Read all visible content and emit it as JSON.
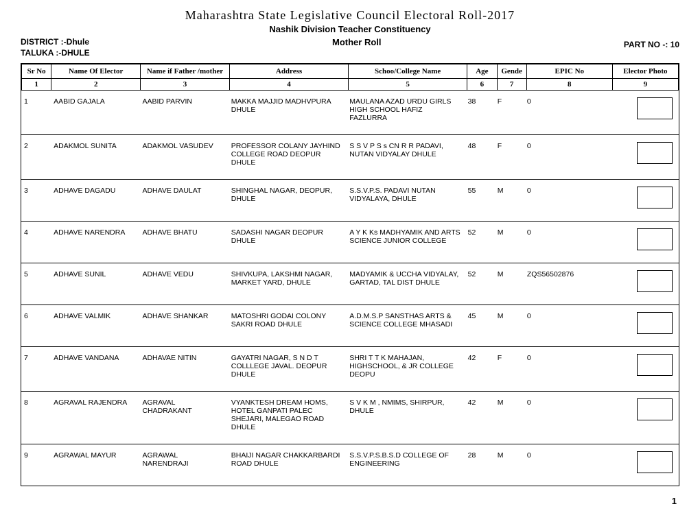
{
  "title": "Maharashtra State Legislative Council Electoral Roll-2017",
  "constituency": "Nashik Division Teacher Constituency",
  "roll_label": "Mother Roll",
  "district_label": "DISTRICT :-Dhule",
  "taluka_label": "TALUKA :-DHULE",
  "part_label": "PART NO -: 10",
  "page_number": "1",
  "columns": {
    "h1": "Sr No",
    "h2": "Name Of Elector",
    "h3": "Name if Father /mother",
    "h4": "Address",
    "h5": "Schoo/College Name",
    "h6": "Age",
    "h7": "Gende",
    "h8": "EPIC No",
    "h9": "Elector Photo",
    "n1": "1",
    "n2": "2",
    "n3": "3",
    "n4": "4",
    "n5": "5",
    "n6": "6",
    "n7": "7",
    "n8": "8",
    "n9": "9"
  },
  "col_widths_pct": [
    4.5,
    13.5,
    13.5,
    18,
    18,
    4.5,
    4.5,
    13,
    10
  ],
  "rows": [
    {
      "sr": "1",
      "name": "AABID GAJALA",
      "father": "AABID PARVIN",
      "address": "MAKKA MAJJID  MADHVPURA DHULE",
      "school": "MAULANA AZAD URDU GIRLS HIGH SCHOOL HAFIZ FAZLURRA",
      "age": "38",
      "gender": "F",
      "epic": "0"
    },
    {
      "sr": "2",
      "name": "ADAKMOL SUNITA",
      "father": "ADAKMOL VASUDEV",
      "address": "PROFESSOR COLANY JAYHIND COLLEGE ROAD DEOPUR DHULE",
      "school": "S S V P S s CN R R PADAVI, NUTAN VIDYALAY DHULE",
      "age": "48",
      "gender": "F",
      "epic": "0"
    },
    {
      "sr": "3",
      "name": "ADHAVE DAGADU",
      "father": "ADHAVE DAULAT",
      "address": "SHINGHAL NAGAR, DEOPUR, DHULE",
      "school": "S.S.V.P.S. PADAVI NUTAN VIDYALAYA, DHULE",
      "age": "55",
      "gender": "M",
      "epic": "0"
    },
    {
      "sr": "4",
      "name": "ADHAVE NARENDRA",
      "father": "ADHAVE BHATU",
      "address": "SADASHI NAGAR DEOPUR DHULE",
      "school": "A Y K Ks MADHYAMIK AND ARTS SCIENCE JUNIOR COLLEGE",
      "age": "52",
      "gender": "M",
      "epic": "0"
    },
    {
      "sr": "5",
      "name": "ADHAVE SUNIL",
      "father": "ADHAVE VEDU",
      "address": "SHIVKUPA,  LAKSHMI NAGAR, MARKET YARD, DHULE",
      "school": "MADYAMIK & UCCHA VIDYALAY, GARTAD, TAL DIST DHULE",
      "age": "52",
      "gender": "M",
      "epic": "ZQS56502876"
    },
    {
      "sr": "6",
      "name": "ADHAVE VALMIK",
      "father": "ADHAVE SHANKAR",
      "address": "MATOSHRI GODAI COLONY SAKRI ROAD DHULE",
      "school": "A.D.M.S.P SANSTHAS ARTS & SCIENCE COLLEGE MHASADI",
      "age": "45",
      "gender": "M",
      "epic": "0"
    },
    {
      "sr": "7",
      "name": "ADHAVE VANDANA",
      "father": "ADHAVAE NITIN",
      "address": "GAYATRI NAGAR, S N D T COLLLEGE JAVAL. DEOPUR DHULE",
      "school": "SHRI T T K MAHAJAN, HIGHSCHOOL, & JR COLLEGE DEOPU",
      "age": "42",
      "gender": "F",
      "epic": "0"
    },
    {
      "sr": "8",
      "name": "AGRAVAL RAJENDRA",
      "father": "AGRAVAL CHADRAKANT",
      "address": "VYANKTESH DREAM HOMS, HOTEL GANPATI PALEC SHEJARI, MALEGAO ROAD DHULE",
      "school": "S V K M , NMIMS,  SHIRPUR, DHULE",
      "age": "42",
      "gender": "M",
      "epic": "0"
    },
    {
      "sr": "9",
      "name": "AGRAWAL MAYUR",
      "father": "AGRAWAL NARENDRAJI",
      "address": "BHAIJI NAGAR CHAKKARBARDI ROAD DHULE",
      "school": "S.S.V.P.S.B.S.D COLLEGE OF ENGINEERING",
      "age": "28",
      "gender": "M",
      "epic": "0"
    }
  ]
}
